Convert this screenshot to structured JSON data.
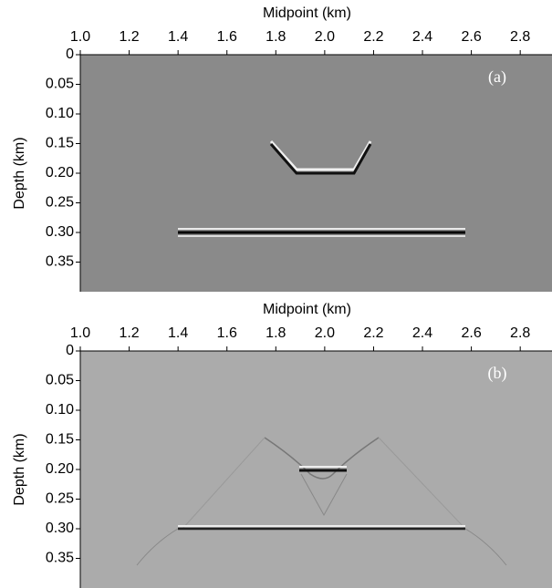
{
  "chart_data": [
    {
      "type": "image",
      "x_label": "Midpoint (km)",
      "y_label": "Depth (km)",
      "annotation": "(a)",
      "xlim": [
        1.0,
        2.93
      ],
      "ylim": [
        0,
        0.4
      ],
      "xticks": [
        {
          "value": 1.0,
          "label": "1.0"
        },
        1.2,
        1.4,
        1.6,
        1.8,
        {
          "value": 2.0,
          "label": "2.0"
        },
        2.2,
        2.4,
        2.6,
        2.8
      ],
      "yticks": [
        0,
        0.05,
        {
          "value": 0.1,
          "label": "0.10"
        },
        0.15,
        {
          "value": 0.2,
          "label": "0.20"
        },
        0.25,
        {
          "value": 0.3,
          "label": "0.30"
        },
        0.35
      ],
      "background": "#8a8a8a"
    },
    {
      "type": "image",
      "x_label": "Midpoint (km)",
      "y_label": "Depth (km)",
      "annotation": "(b)",
      "xlim": [
        1.0,
        2.93
      ],
      "ylim": [
        0,
        0.4
      ],
      "xticks": [
        {
          "value": 1.0,
          "label": "1.0"
        },
        1.2,
        1.4,
        1.6,
        1.8,
        {
          "value": 2.0,
          "label": "2.0"
        },
        2.2,
        2.4,
        2.6,
        2.8
      ],
      "yticks": [
        0,
        0.05,
        {
          "value": 0.1,
          "label": "0.10"
        },
        0.15,
        {
          "value": 0.2,
          "label": "0.20"
        },
        0.25,
        {
          "value": 0.3,
          "label": "0.30"
        },
        0.35
      ],
      "background": "#ababab"
    }
  ]
}
